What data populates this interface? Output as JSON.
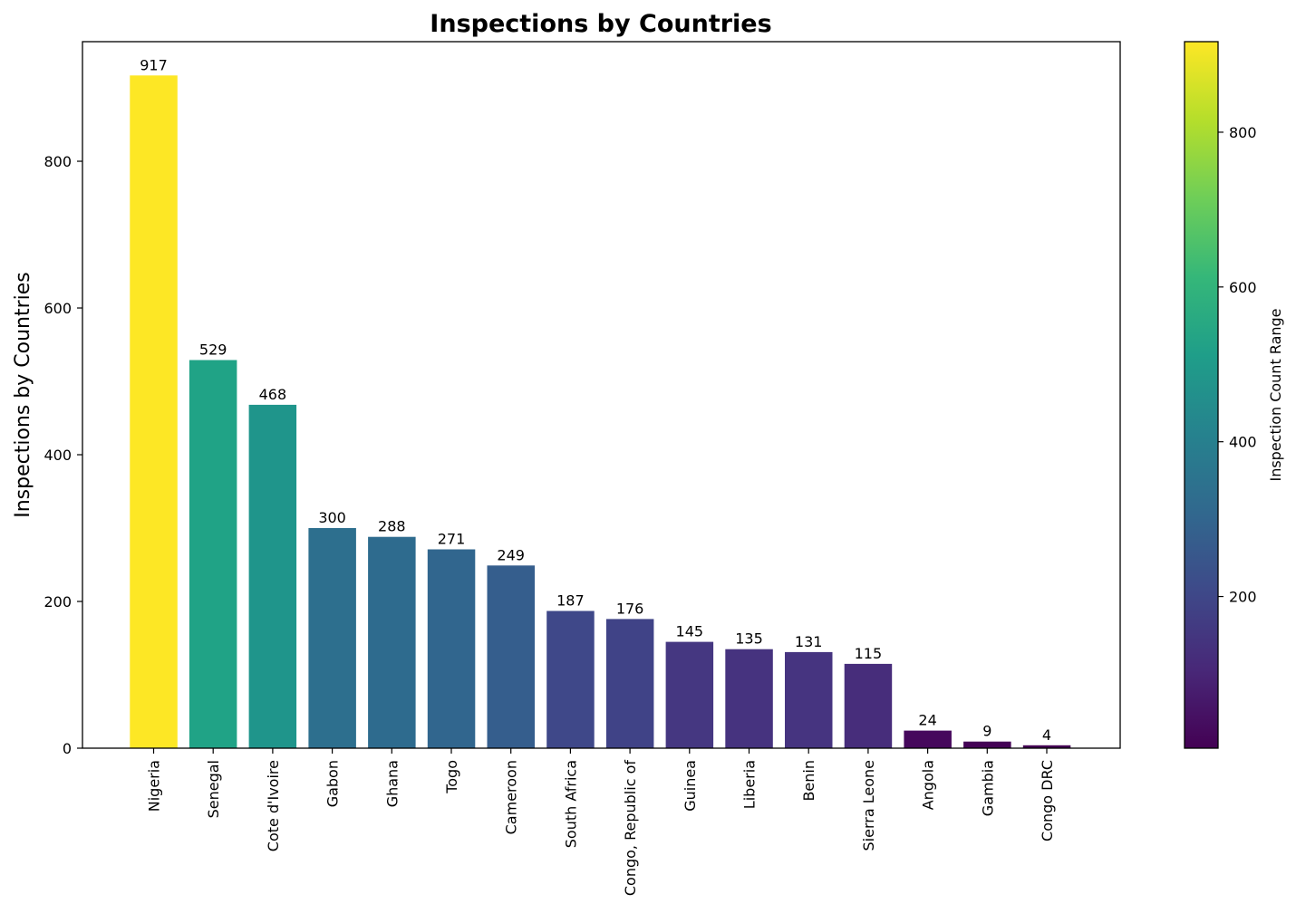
{
  "chart_data": {
    "type": "bar",
    "title": "Inspections by Countries",
    "xlabel": "",
    "ylabel": "Inspections by Countries",
    "ylim": [
      0,
      963
    ],
    "yticks": [
      0,
      200,
      400,
      600,
      800
    ],
    "grid": false,
    "categories": [
      "Nigeria",
      "Senegal",
      "Cote d'Ivoire",
      "Gabon",
      "Ghana",
      "Togo",
      "Cameroon",
      "South Africa",
      "Congo, Republic of",
      "Guinea",
      "Liberia",
      "Benin",
      "Sierra Leone",
      "Angola",
      "Gambia",
      "Congo DRC"
    ],
    "values": [
      917,
      529,
      468,
      300,
      288,
      271,
      249,
      187,
      176,
      145,
      135,
      131,
      115,
      24,
      9,
      4
    ],
    "colors": [
      "#fde725",
      "#20a386",
      "#1f958b",
      "#2d6f8e",
      "#2e6b8e",
      "#31668e",
      "#355e8d",
      "#3f4889",
      "#404387",
      "#453781",
      "#46337f",
      "#463480",
      "#472d7b",
      "#46085c",
      "#440256",
      "#440154"
    ],
    "colorbar": {
      "label": "Inspection Count Range",
      "range": [
        4,
        917
      ],
      "ticks": [
        200,
        400,
        600,
        800
      ],
      "colormap": "viridis",
      "stops": [
        "#440154",
        "#482878",
        "#3e4989",
        "#31688e",
        "#26828e",
        "#1f9e89",
        "#35b779",
        "#6ece58",
        "#b5de2b",
        "#fde725"
      ]
    }
  }
}
